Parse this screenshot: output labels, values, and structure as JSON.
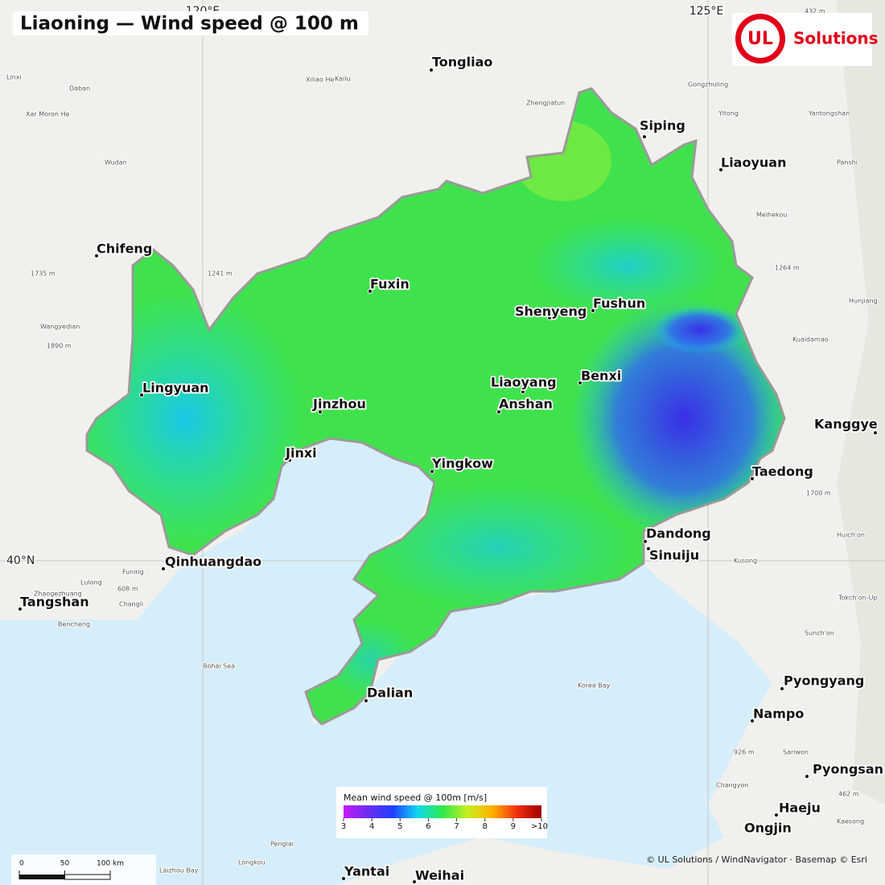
{
  "map": {
    "title": "Liaoning — Wind speed @ 100 m",
    "logo": {
      "mark": "UL",
      "text": "Solutions"
    },
    "graticule": [
      {
        "value": 120,
        "label": "120°E",
        "axis": "lon"
      },
      {
        "value": 125,
        "label": "125°E",
        "axis": "lon"
      },
      {
        "value": 40,
        "label": "40°N",
        "axis": "lat"
      }
    ],
    "cities": [
      "Tongliao",
      "Siping",
      "Liaoyuan",
      "Chifeng",
      "Fuxin",
      "Shenyeng",
      "Fushun",
      "Lingyuan",
      "Liaoyang",
      "Benxi",
      "Jinzhou",
      "Anshan",
      "Kanggye",
      "Jinxi",
      "Yingkow",
      "Taedong",
      "Dandong",
      "Sinuiju",
      "Qinhuangdao",
      "Tangshan",
      "Dalian",
      "Pyongyang",
      "Nampo",
      "Pyongsan",
      "Haeju",
      "Ongjin",
      "Yantai",
      "Weihai"
    ],
    "places": [
      "Linxi",
      "Daban",
      "Kailu",
      "Zhengjiatun",
      "Gongzhuling",
      "Yitong",
      "Yantongshan",
      "Wudan",
      "Panshi",
      "Meihekou",
      "Wangyedian",
      "Hunjiang",
      "Kuaidamao",
      "Funing",
      "Lulong",
      "Zhaogezhuang",
      "Changli",
      "Bencheng",
      "Bohai Sea",
      "Korea Bay",
      "Tokch'on-Up",
      "Sunch'on",
      "Kusong",
      "Huich'on",
      "Sariwon",
      "Kaesong",
      "Changyon",
      "Penglai",
      "Longkou",
      "Laizhou Bay",
      "Xar Moron He",
      "Xiliao He",
      "1735 m",
      "1241 m",
      "1890 m",
      "1264 m",
      "1700 m",
      "926 m",
      "608 m",
      "462 m",
      "432 m"
    ],
    "legend": {
      "title": "Mean wind speed @ 100m  [m/s]",
      "range": [
        3,
        10
      ],
      "ticks": [
        3,
        4,
        5,
        6,
        7,
        8,
        9,
        {
          "value": 10,
          "label": ">10"
        }
      ],
      "colors": [
        "#c51cf5",
        "#6b2cf0",
        "#2040ff",
        "#10d8f0",
        "#2ee84a",
        "#c6f020",
        "#ffb000",
        "#f03010",
        "#a00000"
      ]
    },
    "scalebar": {
      "range": [
        0,
        100
      ],
      "ticks": [
        0,
        50,
        {
          "value": 100,
          "label": "100 km"
        }
      ]
    },
    "attribution": "© UL Solutions / WindNavigator · Basemap © Esri"
  }
}
